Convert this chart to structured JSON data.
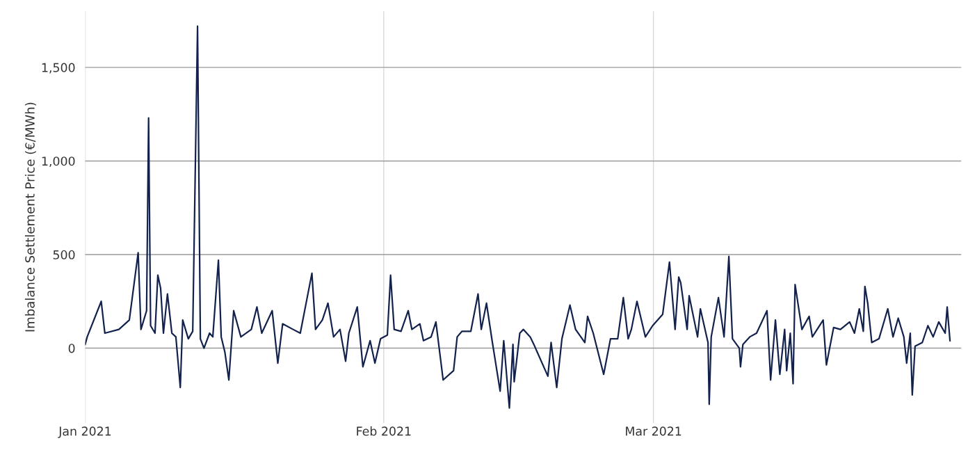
{
  "chart_data": {
    "type": "line",
    "ylabel": "Imbalance Settlement Price (€/MWh)",
    "x": [
      "2021-01-01T00:00",
      "2021-01-01T05:00",
      "2021-01-02T16:00",
      "2021-01-03T01:00",
      "2021-01-04T12:00",
      "2021-01-05T14:00",
      "2021-01-06T12:00",
      "2021-01-06T19:00",
      "2021-01-07T09:00",
      "2021-01-07T14:00",
      "2021-01-07T19:00",
      "2021-01-08T06:00",
      "2021-01-08T13:00",
      "2021-01-08T20:00",
      "2021-01-09T03:00",
      "2021-01-09T13:00",
      "2021-01-10T00:00",
      "2021-01-10T10:00",
      "2021-01-10T21:00",
      "2021-01-11T03:00",
      "2021-01-11T17:00",
      "2021-01-12T04:00",
      "2021-01-12T16:00",
      "2021-01-12T23:00",
      "2021-01-13T08:00",
      "2021-01-13T22:00",
      "2021-01-14T06:00",
      "2021-01-14T20:00",
      "2021-01-15T03:00",
      "2021-01-15T12:00",
      "2021-01-15T22:00",
      "2021-01-16T10:00",
      "2021-01-17T04:00",
      "2021-01-18T06:00",
      "2021-01-18T20:00",
      "2021-01-19T08:00",
      "2021-01-20T10:00",
      "2021-01-21T00:00",
      "2021-01-21T12:00",
      "2021-01-22T14:00",
      "2021-01-23T08:00",
      "2021-01-24T13:00",
      "2021-01-24T22:00",
      "2021-01-25T15:00",
      "2021-01-26T05:00",
      "2021-01-26T19:00",
      "2021-01-27T11:00",
      "2021-01-28T01:00",
      "2021-01-28T09:00",
      "2021-01-29T06:00",
      "2021-01-29T20:00",
      "2021-01-30T14:00",
      "2021-01-31T02:00",
      "2021-01-31T16:00",
      "2021-02-01T09:00",
      "2021-02-01T17:00",
      "2021-02-02T02:00",
      "2021-02-02T19:00",
      "2021-02-03T13:00",
      "2021-02-03T22:00",
      "2021-02-04T18:00",
      "2021-02-05T03:00",
      "2021-02-05T22:00",
      "2021-02-06T10:00",
      "2021-02-07T04:00",
      "2021-02-08T06:00",
      "2021-02-08T15:00",
      "2021-02-09T03:00",
      "2021-02-10T01:00",
      "2021-02-10T19:00",
      "2021-02-11T03:00",
      "2021-02-11T16:00",
      "2021-02-12T06:00",
      "2021-02-13T02:00",
      "2021-02-13T11:00",
      "2021-02-14T01:00",
      "2021-02-14T10:00",
      "2021-02-14T13:00",
      "2021-02-15T03:00",
      "2021-02-15T12:00",
      "2021-02-16T05:00",
      "2021-02-16T14:00",
      "2021-02-18T01:00",
      "2021-02-18T09:00",
      "2021-02-18T23:00",
      "2021-02-19T12:00",
      "2021-02-20T08:00",
      "2021-02-20T22:00",
      "2021-02-21T21:00",
      "2021-02-22T04:00",
      "2021-02-22T18:00",
      "2021-02-23T20:00",
      "2021-02-24T13:00",
      "2021-02-25T07:00",
      "2021-02-25T21:00",
      "2021-02-26T09:00",
      "2021-02-26T17:00",
      "2021-02-27T07:00",
      "2021-02-28T04:00",
      "2021-02-28T22:00",
      "2021-03-01T23:00",
      "2021-03-02T16:00",
      "2021-03-03T06:00",
      "2021-03-03T15:00",
      "2021-03-03T20:00",
      "2021-03-04T12:00",
      "2021-03-04T17:00",
      "2021-03-05T14:00",
      "2021-03-05T21:00",
      "2021-03-06T16:00",
      "2021-03-06T19:00",
      "2021-03-07T00:00",
      "2021-03-07T18:00",
      "2021-03-08T08:00",
      "2021-03-08T20:00",
      "2021-03-09T05:00",
      "2021-03-09T22:00",
      "2021-03-10T01:00",
      "2021-03-10T07:00",
      "2021-03-11T00:00",
      "2021-03-11T17:00",
      "2021-03-12T19:00",
      "2021-03-13T04:00",
      "2021-03-13T16:00",
      "2021-03-14T03:00",
      "2021-03-14T15:00",
      "2021-03-14T20:00",
      "2021-03-15T05:00",
      "2021-03-15T12:00",
      "2021-03-15T17:00",
      "2021-03-16T10:00",
      "2021-03-17T04:00",
      "2021-03-17T12:00",
      "2021-03-18T15:00",
      "2021-03-18T23:00",
      "2021-03-19T17:00",
      "2021-03-20T10:00",
      "2021-03-21T09:00",
      "2021-03-21T21:00",
      "2021-03-22T09:00",
      "2021-03-22T19:00",
      "2021-03-22T23:00",
      "2021-03-23T06:00",
      "2021-03-23T16:00",
      "2021-03-24T10:00",
      "2021-03-25T08:00",
      "2021-03-25T21:00",
      "2021-03-26T10:00",
      "2021-03-27T00:00",
      "2021-03-27T07:00",
      "2021-03-27T16:00",
      "2021-03-27T21:00",
      "2021-03-28T04:00",
      "2021-03-28T22:00",
      "2021-03-29T12:00",
      "2021-03-30T01:00",
      "2021-03-30T15:00",
      "2021-03-31T07:00",
      "2021-03-31T12:00",
      "2021-03-31T19:00"
    ],
    "series": [
      {
        "color": "#12224d",
        "values": [
          20,
          60,
          250,
          80,
          100,
          150,
          510,
          100,
          200,
          1230,
          120,
          80,
          390,
          320,
          80,
          290,
          80,
          60,
          -210,
          150,
          50,
          90,
          1720,
          50,
          0,
          80,
          60,
          470,
          60,
          -20,
          -170,
          200,
          60,
          100,
          220,
          80,
          200,
          -80,
          130,
          100,
          80,
          400,
          100,
          150,
          240,
          60,
          100,
          -70,
          80,
          220,
          -100,
          40,
          -80,
          50,
          70,
          390,
          100,
          90,
          200,
          100,
          130,
          40,
          60,
          140,
          -170,
          -120,
          60,
          90,
          90,
          290,
          100,
          240,
          40,
          -230,
          40,
          -320,
          20,
          -180,
          80,
          100,
          60,
          20,
          -150,
          30,
          -210,
          50,
          230,
          100,
          30,
          170,
          80,
          -140,
          50,
          50,
          270,
          50,
          100,
          250,
          60,
          120,
          180,
          460,
          100,
          380,
          350,
          100,
          280,
          60,
          210,
          30,
          -300,
          60,
          270,
          60,
          490,
          50,
          0,
          -100,
          20,
          60,
          80,
          200,
          -170,
          150,
          -140,
          100,
          -120,
          80,
          -190,
          340,
          100,
          170,
          60,
          150,
          -90,
          110,
          100,
          140,
          80,
          210,
          90,
          330,
          240,
          30,
          50,
          210,
          60,
          160,
          60,
          -80,
          80,
          -250,
          10,
          30,
          120,
          60,
          140,
          80,
          220,
          40
        ]
      }
    ],
    "xlim": [
      "2021-01-01",
      "2021-04-01T23:00"
    ],
    "xticks": [
      {
        "value": "2021-01-01",
        "label": "Jan 2021"
      },
      {
        "value": "2021-02-01",
        "label": "Feb 2021"
      },
      {
        "value": "2021-03-01",
        "label": "Mar 2021"
      }
    ],
    "ylim": [
      -400,
      1800
    ],
    "yticks": [
      0,
      {
        "value": 500,
        "label": "500"
      },
      {
        "value": 1000,
        "label": "1,000"
      },
      {
        "value": 1500,
        "label": "1,500"
      }
    ],
    "grid": true,
    "line_style": "solid",
    "marker": "none"
  }
}
